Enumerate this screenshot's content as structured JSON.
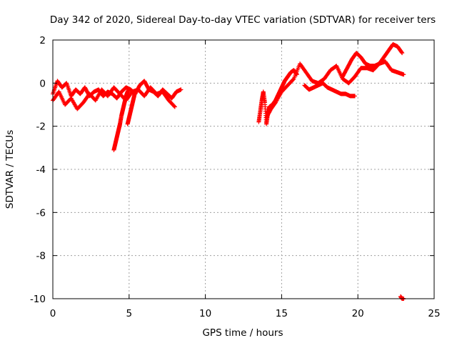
{
  "chart_data": {
    "type": "scatter",
    "title": "Day 342 of 2020, Sidereal Day-to-day VTEC variation (SDTVAR) for receiver ters",
    "xlabel": "GPS time / hours",
    "ylabel": "SDTVAR / TECUs",
    "xlim": [
      0,
      25
    ],
    "ylim": [
      -10,
      2
    ],
    "xticks": [
      0,
      5,
      10,
      15,
      20,
      25
    ],
    "yticks": [
      2,
      0,
      -2,
      -4,
      -6,
      -8,
      -10
    ],
    "grid": true,
    "marker": "+",
    "series": [
      {
        "name": "SDTVAR",
        "color": "#ff0000",
        "segments": [
          {
            "x": [
              0.0,
              0.3,
              0.6,
              0.9,
              1.2,
              1.5,
              1.8,
              2.1,
              2.4,
              2.7,
              3.0,
              3.3,
              3.6,
              3.9,
              4.2,
              4.5,
              4.8,
              5.1,
              5.4,
              5.7,
              6.0,
              6.3,
              6.6,
              6.9,
              7.2,
              7.5,
              7.8,
              8.1,
              8.4
            ],
            "y": [
              -0.5,
              0.1,
              -0.2,
              0.0,
              -0.6,
              -0.3,
              -0.5,
              -0.2,
              -0.6,
              -0.4,
              -0.3,
              -0.6,
              -0.4,
              -0.5,
              -0.7,
              -0.4,
              -0.2,
              -0.3,
              -0.5,
              -0.1,
              0.1,
              -0.3,
              -0.4,
              -0.6,
              -0.3,
              -0.5,
              -0.7,
              -0.4,
              -0.3
            ]
          },
          {
            "x": [
              0.0,
              0.4,
              0.8,
              1.2,
              1.6,
              2.0,
              2.4,
              2.8,
              3.2,
              3.6,
              4.0,
              4.4,
              4.8,
              5.2,
              5.6,
              6.0,
              6.4,
              6.8,
              7.2,
              7.6,
              8.0
            ],
            "y": [
              -0.8,
              -0.4,
              -1.0,
              -0.7,
              -1.2,
              -0.9,
              -0.5,
              -0.8,
              -0.3,
              -0.6,
              -0.2,
              -0.5,
              -0.8,
              -0.4,
              -0.3,
              -0.6,
              -0.2,
              -0.5,
              -0.4,
              -0.8,
              -1.1
            ]
          },
          {
            "x": [
              4.0,
              4.1,
              4.2,
              4.3,
              4.4,
              4.5,
              4.6,
              4.7,
              4.8,
              4.9,
              5.0
            ],
            "y": [
              -3.1,
              -2.8,
              -2.5,
              -2.2,
              -1.9,
              -1.5,
              -1.2,
              -0.9,
              -0.6,
              -0.4,
              -0.3
            ]
          },
          {
            "x": [
              4.9,
              5.0,
              5.1,
              5.2,
              5.3,
              5.4
            ],
            "y": [
              -1.9,
              -1.6,
              -1.3,
              -1.0,
              -0.7,
              -0.4
            ]
          },
          {
            "x": [
              13.5,
              13.6,
              13.7,
              13.8,
              13.9,
              14.0,
              14.1,
              14.2,
              14.4,
              14.6,
              14.8,
              15.0,
              15.2,
              15.4,
              15.6,
              15.8,
              16.0
            ],
            "y": [
              -1.8,
              -1.3,
              -0.8,
              -0.4,
              -0.9,
              -1.9,
              -1.4,
              -1.1,
              -1.0,
              -0.8,
              -0.5,
              -0.2,
              0.1,
              0.3,
              0.5,
              0.6,
              0.4
            ]
          },
          {
            "x": [
              14.0,
              14.3,
              14.6,
              15.0,
              15.4,
              15.8,
              16.2,
              16.6,
              17.0,
              17.4,
              17.8,
              18.2,
              18.6,
              19.0,
              19.4,
              19.8,
              20.2,
              20.6,
              21.0,
              21.4,
              21.8,
              22.2,
              22.6,
              23.0
            ],
            "y": [
              -1.6,
              -1.2,
              -0.9,
              -0.4,
              -0.1,
              0.2,
              0.9,
              0.5,
              0.1,
              0.0,
              0.2,
              0.6,
              0.8,
              0.2,
              0.0,
              0.3,
              0.7,
              0.7,
              0.6,
              0.9,
              1.0,
              0.6,
              0.5,
              0.4
            ]
          },
          {
            "x": [
              16.5,
              16.8,
              17.1,
              17.4,
              17.7,
              18.0,
              18.3,
              18.6,
              18.9,
              19.2,
              19.5,
              19.8
            ],
            "y": [
              -0.1,
              -0.3,
              -0.2,
              -0.1,
              0.0,
              -0.2,
              -0.3,
              -0.4,
              -0.5,
              -0.5,
              -0.6,
              -0.6
            ]
          },
          {
            "x": [
              19.0,
              19.3,
              19.6,
              19.9,
              20.2,
              20.5,
              20.8,
              21.1,
              21.4,
              21.7,
              22.0,
              22.3,
              22.6,
              22.9
            ],
            "y": [
              0.3,
              0.7,
              1.1,
              1.4,
              1.2,
              0.9,
              0.8,
              0.8,
              0.9,
              1.2,
              1.5,
              1.8,
              1.7,
              1.4
            ]
          },
          {
            "x": [
              22.8,
              22.9,
              23.0
            ],
            "y": [
              -9.9,
              -10.0,
              -10.0
            ]
          }
        ]
      }
    ]
  }
}
